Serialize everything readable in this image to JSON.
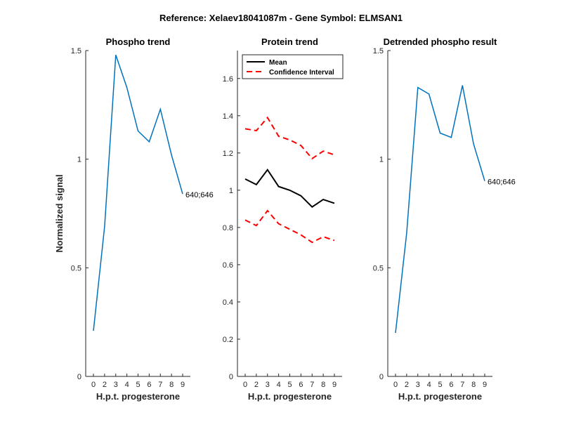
{
  "figure_title": "Reference:  Xelaev18041087m - Gene Symbol:  ELMSAN1",
  "chart_data": [
    {
      "type": "line",
      "title": "Phospho trend",
      "xlabel": "H.p.t. progesterone",
      "ylabel": "Normalized signal",
      "x": [
        0,
        2,
        3,
        4,
        5,
        6,
        7,
        8,
        9
      ],
      "xticklabels": [
        "0",
        "2",
        "3",
        "4",
        "5",
        "6",
        "7",
        "8",
        "9"
      ],
      "ylim": [
        0,
        1.5
      ],
      "yticks": [
        0,
        0.5,
        1,
        1.5
      ],
      "yticklabels": [
        "0",
        "0.5",
        "1",
        "1.5"
      ],
      "series": [
        {
          "values": [
            0.21,
            0.69,
            1.48,
            1.33,
            1.13,
            1.08,
            1.23,
            1.02,
            0.84
          ],
          "color": "#0072BD",
          "style": "solid"
        }
      ],
      "annotation": "640;646"
    },
    {
      "type": "line",
      "title": "Protein trend",
      "xlabel": "H.p.t. progesterone",
      "ylabel": "",
      "x": [
        0,
        2,
        3,
        4,
        5,
        6,
        7,
        8,
        9
      ],
      "xticklabels": [
        "0",
        "2",
        "3",
        "4",
        "5",
        "6",
        "7",
        "8",
        "9"
      ],
      "ylim": [
        0,
        1.75
      ],
      "yticks": [
        0,
        0.2,
        0.4,
        0.6,
        0.8,
        1.0,
        1.2,
        1.4,
        1.6
      ],
      "yticklabels": [
        "0",
        "0.2",
        "0.4",
        "0.6",
        "0.8",
        "1",
        "1.2",
        "1.4",
        "1.6"
      ],
      "legend_position": "top-left",
      "series": [
        {
          "name": "Mean",
          "values": [
            1.06,
            1.03,
            1.11,
            1.02,
            1.0,
            0.97,
            0.91,
            0.95,
            0.93
          ],
          "color": "#000000",
          "style": "solid"
        },
        {
          "name": "Confidence Interval",
          "values": [
            1.33,
            1.32,
            1.39,
            1.29,
            1.27,
            1.24,
            1.17,
            1.21,
            1.19
          ],
          "color": "#FF0000",
          "style": "dashed"
        },
        {
          "values": [
            0.84,
            0.81,
            0.89,
            0.82,
            0.79,
            0.76,
            0.72,
            0.75,
            0.73
          ],
          "color": "#FF0000",
          "style": "dashed"
        }
      ]
    },
    {
      "type": "line",
      "title": "Detrended phospho result",
      "xlabel": "H.p.t. progesterone",
      "ylabel": "",
      "x": [
        0,
        2,
        3,
        4,
        5,
        6,
        7,
        8,
        9
      ],
      "xticklabels": [
        "0",
        "2",
        "3",
        "4",
        "5",
        "6",
        "7",
        "8",
        "9"
      ],
      "ylim": [
        0,
        1.5
      ],
      "yticks": [
        0,
        0.5,
        1,
        1.5
      ],
      "yticklabels": [
        "0",
        "0.5",
        "1",
        "1.5"
      ],
      "series": [
        {
          "values": [
            0.2,
            0.66,
            1.33,
            1.3,
            1.12,
            1.1,
            1.34,
            1.07,
            0.9
          ],
          "color": "#0072BD",
          "style": "solid"
        }
      ],
      "annotation": "640;646"
    }
  ]
}
